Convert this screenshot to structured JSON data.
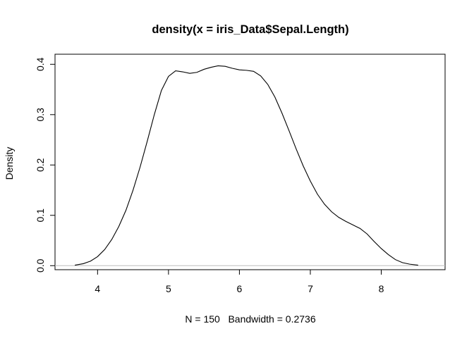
{
  "chart_data": {
    "type": "line",
    "title": "density(x = iris_Data$Sepal.Length)",
    "xlabel": "N = 150   Bandwidth = 0.2736",
    "ylabel": "Density",
    "xlim": [
      3.4,
      8.9
    ],
    "ylim": [
      -0.008,
      0.42
    ],
    "x_ticks": [
      4,
      5,
      6,
      7,
      8
    ],
    "x_tick_labels": [
      "4",
      "5",
      "6",
      "7",
      "8"
    ],
    "y_ticks": [
      0.0,
      0.1,
      0.2,
      0.3,
      0.4
    ],
    "y_tick_labels": [
      "0.0",
      "0.1",
      "0.2",
      "0.3",
      "0.4"
    ],
    "baseline": 0,
    "grid": false,
    "series": [
      {
        "x": [
          3.68,
          3.8,
          3.9,
          4.0,
          4.1,
          4.2,
          4.3,
          4.4,
          4.5,
          4.6,
          4.7,
          4.8,
          4.9,
          5.0,
          5.1,
          5.2,
          5.3,
          5.4,
          5.5,
          5.6,
          5.7,
          5.8,
          5.9,
          6.0,
          6.1,
          6.2,
          6.3,
          6.4,
          6.5,
          6.6,
          6.7,
          6.8,
          6.9,
          7.0,
          7.1,
          7.2,
          7.3,
          7.4,
          7.5,
          7.6,
          7.7,
          7.8,
          7.9,
          8.0,
          8.1,
          8.2,
          8.3,
          8.4,
          8.52
        ],
        "y": [
          0.001,
          0.004,
          0.009,
          0.018,
          0.032,
          0.052,
          0.078,
          0.11,
          0.15,
          0.196,
          0.247,
          0.3,
          0.348,
          0.376,
          0.387,
          0.385,
          0.382,
          0.384,
          0.39,
          0.394,
          0.397,
          0.396,
          0.392,
          0.389,
          0.388,
          0.386,
          0.377,
          0.36,
          0.335,
          0.303,
          0.268,
          0.232,
          0.198,
          0.168,
          0.142,
          0.122,
          0.107,
          0.096,
          0.088,
          0.081,
          0.074,
          0.063,
          0.048,
          0.034,
          0.022,
          0.012,
          0.006,
          0.003,
          0.001
        ]
      }
    ]
  }
}
